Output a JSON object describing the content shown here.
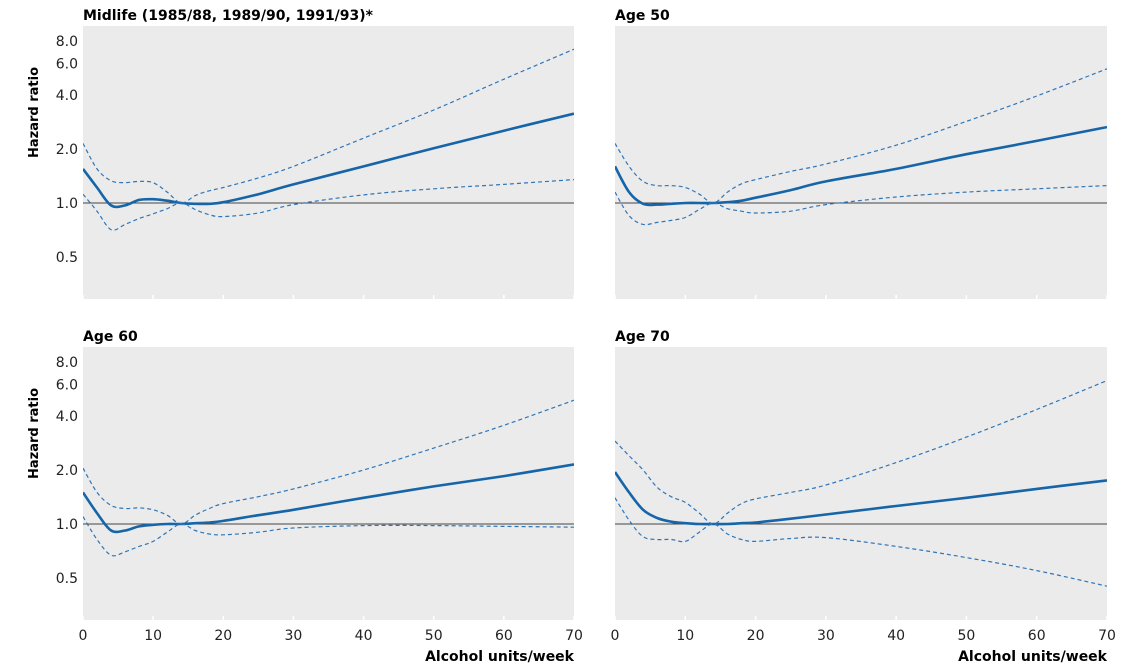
{
  "chart_data": [
    {
      "type": "line",
      "title": "Midlife (1985/88, 1989/90, 1991/93)*",
      "xlabel": "",
      "ylabel": "Hazard ratio",
      "xlim": [
        0,
        70
      ],
      "ylim": [
        0.3,
        8.0
      ],
      "yscale": "log",
      "xticks": [
        0,
        10,
        20,
        30,
        40,
        50,
        60,
        70
      ],
      "yticks": [
        0.5,
        1.0,
        2.0,
        4.0,
        6.0,
        8.0
      ],
      "ytick_labels": [
        "0.5",
        "1.0",
        "2.0",
        "4.0",
        "6.0",
        "8.0"
      ],
      "reference_line": 1.0,
      "series": [
        {
          "style": "estimate",
          "x": [
            0,
            2,
            4,
            6,
            8,
            10,
            12,
            14,
            16,
            18,
            20,
            25,
            30,
            40,
            50,
            60,
            70
          ],
          "y": [
            1.55,
            1.22,
            0.97,
            0.97,
            1.04,
            1.05,
            1.03,
            1.0,
            0.99,
            0.99,
            1.01,
            1.12,
            1.27,
            1.6,
            2.02,
            2.53,
            3.15
          ]
        },
        {
          "style": "upper_ci",
          "x": [
            0,
            2,
            4,
            6,
            8,
            10,
            12,
            14,
            16,
            18,
            20,
            25,
            30,
            40,
            50,
            60,
            70
          ],
          "y": [
            2.15,
            1.55,
            1.33,
            1.3,
            1.32,
            1.3,
            1.15,
            1.0,
            1.1,
            1.17,
            1.22,
            1.38,
            1.6,
            2.3,
            3.3,
            4.9,
            7.2
          ]
        },
        {
          "style": "lower_ci",
          "x": [
            0,
            2,
            4,
            6,
            8,
            10,
            12,
            14,
            16,
            18,
            20,
            25,
            30,
            40,
            50,
            60,
            70
          ],
          "y": [
            1.12,
            0.9,
            0.71,
            0.76,
            0.82,
            0.87,
            0.93,
            1.0,
            0.92,
            0.86,
            0.84,
            0.88,
            0.98,
            1.11,
            1.2,
            1.27,
            1.35
          ]
        }
      ]
    },
    {
      "type": "line",
      "title": "Age 50",
      "xlabel": "",
      "ylabel": "",
      "xlim": [
        0,
        70
      ],
      "ylim": [
        0.3,
        8.0
      ],
      "yscale": "log",
      "xticks": [
        0,
        10,
        20,
        30,
        40,
        50,
        60,
        70
      ],
      "yticks": [
        0.5,
        1.0,
        2.0,
        4.0,
        6.0,
        8.0
      ],
      "reference_line": 1.0,
      "series": [
        {
          "style": "estimate",
          "x": [
            0,
            2,
            4,
            6,
            8,
            10,
            12,
            14,
            16,
            18,
            20,
            25,
            30,
            40,
            50,
            60,
            70
          ],
          "y": [
            1.6,
            1.15,
            0.99,
            0.98,
            0.99,
            1.0,
            1.0,
            1.0,
            1.01,
            1.03,
            1.07,
            1.18,
            1.32,
            1.55,
            1.87,
            2.22,
            2.65
          ]
        },
        {
          "style": "upper_ci",
          "x": [
            0,
            2,
            4,
            6,
            8,
            10,
            12,
            14,
            16,
            18,
            20,
            25,
            30,
            40,
            50,
            60,
            70
          ],
          "y": [
            2.15,
            1.6,
            1.32,
            1.25,
            1.25,
            1.22,
            1.12,
            1.0,
            1.15,
            1.28,
            1.35,
            1.5,
            1.65,
            2.1,
            2.85,
            3.95,
            5.6
          ]
        },
        {
          "style": "lower_ci",
          "x": [
            0,
            2,
            4,
            6,
            8,
            10,
            12,
            14,
            16,
            18,
            20,
            25,
            30,
            40,
            50,
            60,
            70
          ],
          "y": [
            1.15,
            0.85,
            0.76,
            0.78,
            0.8,
            0.83,
            0.92,
            1.0,
            0.93,
            0.9,
            0.88,
            0.9,
            0.98,
            1.08,
            1.15,
            1.2,
            1.25
          ]
        }
      ]
    },
    {
      "type": "line",
      "title": "Age 60",
      "xlabel": "Alcohol units/week",
      "ylabel": "Hazard ratio",
      "xlim": [
        0,
        70
      ],
      "ylim": [
        0.3,
        8.0
      ],
      "yscale": "log",
      "xticks": [
        0,
        10,
        20,
        30,
        40,
        50,
        60,
        70
      ],
      "xtick_labels": [
        "0",
        "10",
        "20",
        "30",
        "40",
        "50",
        "60",
        "70"
      ],
      "yticks": [
        0.5,
        1.0,
        2.0,
        4.0,
        6.0,
        8.0
      ],
      "ytick_labels": [
        "0.5",
        "1.0",
        "2.0",
        "4.0",
        "6.0",
        "8.0"
      ],
      "reference_line": 1.0,
      "series": [
        {
          "style": "estimate",
          "x": [
            0,
            2,
            4,
            6,
            8,
            10,
            12,
            14,
            16,
            18,
            20,
            25,
            30,
            40,
            50,
            60,
            70
          ],
          "y": [
            1.5,
            1.15,
            0.92,
            0.92,
            0.97,
            0.99,
            1.0,
            1.0,
            1.01,
            1.02,
            1.04,
            1.12,
            1.2,
            1.4,
            1.62,
            1.85,
            2.15
          ]
        },
        {
          "style": "upper_ci",
          "x": [
            0,
            2,
            4,
            6,
            8,
            10,
            12,
            14,
            16,
            18,
            20,
            25,
            30,
            40,
            50,
            60,
            70
          ],
          "y": [
            2.05,
            1.5,
            1.27,
            1.22,
            1.23,
            1.2,
            1.12,
            1.0,
            1.12,
            1.22,
            1.3,
            1.42,
            1.57,
            2.0,
            2.65,
            3.55,
            4.9
          ]
        },
        {
          "style": "lower_ci",
          "x": [
            0,
            2,
            4,
            6,
            8,
            10,
            12,
            14,
            16,
            18,
            20,
            25,
            30,
            40,
            50,
            60,
            70
          ],
          "y": [
            1.1,
            0.82,
            0.67,
            0.7,
            0.75,
            0.8,
            0.9,
            1.0,
            0.92,
            0.88,
            0.87,
            0.9,
            0.95,
            0.98,
            0.98,
            0.97,
            0.96
          ]
        }
      ]
    },
    {
      "type": "line",
      "title": "Age 70",
      "xlabel": "Alcohol units/week",
      "ylabel": "",
      "xlim": [
        0,
        70
      ],
      "ylim": [
        0.3,
        8.0
      ],
      "yscale": "log",
      "xticks": [
        0,
        10,
        20,
        30,
        40,
        50,
        60,
        70
      ],
      "xtick_labels": [
        "0",
        "10",
        "20",
        "30",
        "40",
        "50",
        "60",
        "70"
      ],
      "yticks": [
        0.5,
        1.0,
        2.0,
        4.0,
        6.0,
        8.0
      ],
      "reference_line": 1.0,
      "series": [
        {
          "style": "estimate",
          "x": [
            0,
            2,
            4,
            6,
            8,
            10,
            12,
            14,
            16,
            18,
            20,
            25,
            30,
            40,
            50,
            60,
            70
          ],
          "y": [
            1.95,
            1.5,
            1.2,
            1.08,
            1.03,
            1.01,
            1.0,
            1.0,
            1.0,
            1.01,
            1.02,
            1.07,
            1.13,
            1.26,
            1.4,
            1.57,
            1.75
          ]
        },
        {
          "style": "upper_ci",
          "x": [
            0,
            2,
            4,
            6,
            8,
            10,
            12,
            14,
            16,
            18,
            20,
            25,
            30,
            40,
            50,
            60,
            70
          ],
          "y": [
            2.9,
            2.4,
            2.0,
            1.6,
            1.42,
            1.32,
            1.15,
            1.0,
            1.15,
            1.3,
            1.38,
            1.5,
            1.65,
            2.2,
            3.05,
            4.35,
            6.3
          ]
        },
        {
          "style": "lower_ci",
          "x": [
            0,
            2,
            4,
            6,
            8,
            10,
            12,
            14,
            16,
            18,
            20,
            25,
            30,
            40,
            50,
            60,
            70
          ],
          "y": [
            1.4,
            1.05,
            0.85,
            0.82,
            0.82,
            0.8,
            0.9,
            1.0,
            0.88,
            0.82,
            0.8,
            0.83,
            0.84,
            0.75,
            0.65,
            0.55,
            0.45
          ]
        }
      ]
    }
  ],
  "colors": {
    "panel_background": "#ebebeb",
    "estimate_line": "#1565a8",
    "ci_line": "#2f76b8",
    "reference_line": "#444444"
  }
}
